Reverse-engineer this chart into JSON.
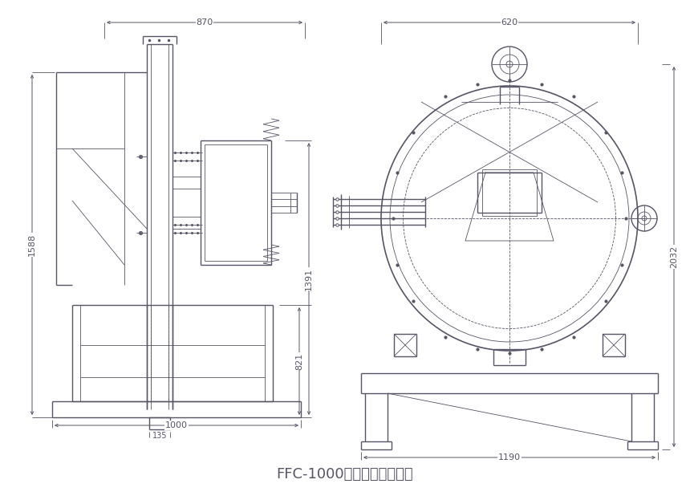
{
  "title": "FFC-1000型粉碎機外形尺寸",
  "title_fontsize": 13,
  "bg_color": "#ffffff",
  "line_color": "#555566",
  "fig_width": 8.6,
  "fig_height": 6.23
}
